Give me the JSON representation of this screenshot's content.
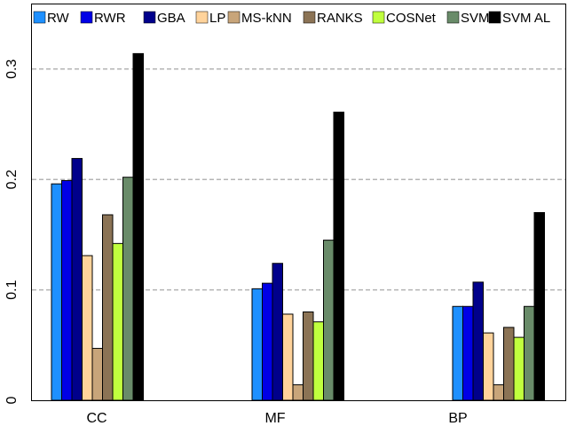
{
  "chart_data": {
    "type": "bar",
    "categories": [
      "CC",
      "MF",
      "BP"
    ],
    "yticks": [
      "0",
      "0.1",
      "0.2",
      "0.3"
    ],
    "ylim": [
      0,
      0.33
    ],
    "grid": "horizontal dashed",
    "legend_position": "top",
    "series": [
      {
        "name": "RW",
        "color": "#1e90ff",
        "values": [
          0.196,
          0.101,
          0.085
        ]
      },
      {
        "name": "RWR",
        "color": "#0000e6",
        "values": [
          0.199,
          0.106,
          0.085
        ]
      },
      {
        "name": "GBA",
        "color": "#00008b",
        "values": [
          0.219,
          0.124,
          0.107
        ]
      },
      {
        "name": "LP",
        "color": "#ffd39b",
        "values": [
          0.131,
          0.078,
          0.061
        ]
      },
      {
        "name": "MS-kNN",
        "color": "#c8a57a",
        "values": [
          0.047,
          0.014,
          0.014
        ]
      },
      {
        "name": "RANKS",
        "color": "#8b7355",
        "values": [
          0.168,
          0.08,
          0.066
        ]
      },
      {
        "name": "COSNet",
        "color": "#c0ff3e",
        "values": [
          0.142,
          0.071,
          0.057
        ]
      },
      {
        "name": "SVM",
        "color": "#698b69",
        "values": [
          0.202,
          0.145,
          0.085
        ]
      },
      {
        "name": "SVM AL",
        "color": "#000000",
        "values": [
          0.314,
          0.261,
          0.17
        ]
      }
    ]
  }
}
